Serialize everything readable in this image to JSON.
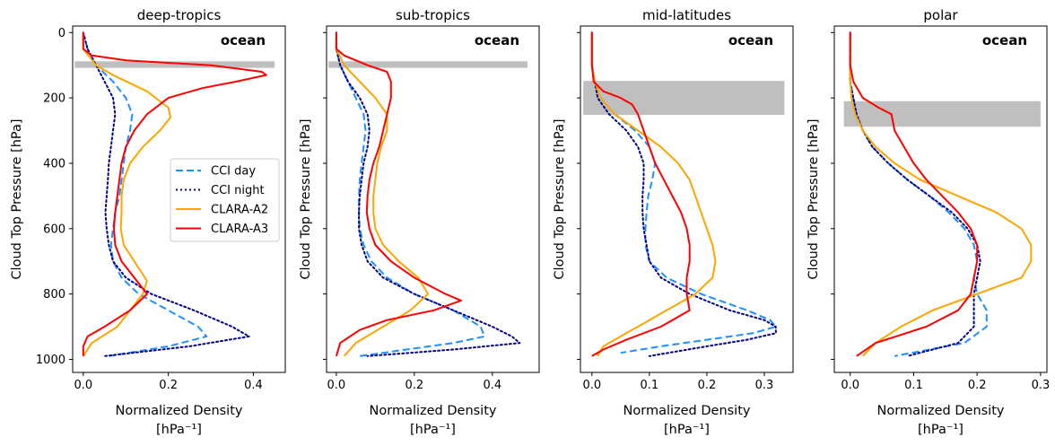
{
  "chart_data": [
    {
      "type": "line",
      "title": "deep-tropics",
      "annotation": "ocean",
      "xlabel": "Normalized Density",
      "xunit": "[hPa⁻¹]",
      "ylabel": "Cloud Top Pressure [hPa]",
      "xlim": [
        -0.025,
        0.475
      ],
      "ylim": [
        1040,
        -20
      ],
      "xticks": [
        0.0,
        0.2,
        0.4
      ],
      "xtick_labels": [
        "0.0",
        "0.2",
        "0.4"
      ],
      "yticks": [
        0,
        200,
        400,
        600,
        800,
        1000
      ],
      "ytick_labels": [
        "0",
        "200",
        "400",
        "600",
        "800",
        "1000"
      ],
      "tropopause_band": {
        "p_top": 88,
        "p_bottom": 108,
        "x_min": -0.02,
        "x_max": 0.45
      },
      "series": [
        {
          "name": "CCI day",
          "pressure": [
            0,
            50,
            100,
            150,
            200,
            250,
            300,
            350,
            400,
            450,
            500,
            550,
            600,
            650,
            700,
            750,
            800,
            850,
            900,
            930,
            960,
            990
          ],
          "density": [
            0.0,
            0.01,
            0.03,
            0.07,
            0.1,
            0.115,
            0.11,
            0.1,
            0.095,
            0.09,
            0.085,
            0.075,
            0.07,
            0.065,
            0.07,
            0.09,
            0.13,
            0.2,
            0.27,
            0.29,
            0.2,
            0.06
          ]
        },
        {
          "name": "CCI night",
          "pressure": [
            0,
            50,
            100,
            150,
            200,
            250,
            300,
            350,
            400,
            450,
            500,
            550,
            600,
            650,
            700,
            750,
            800,
            850,
            900,
            930,
            960,
            990
          ],
          "density": [
            0.0,
            0.01,
            0.03,
            0.05,
            0.07,
            0.075,
            0.07,
            0.065,
            0.06,
            0.058,
            0.055,
            0.052,
            0.055,
            0.06,
            0.07,
            0.1,
            0.16,
            0.26,
            0.35,
            0.39,
            0.25,
            0.05
          ]
        },
        {
          "name": "CLARA-A2",
          "pressure": [
            0,
            50,
            100,
            130,
            180,
            230,
            260,
            300,
            350,
            400,
            450,
            500,
            550,
            600,
            650,
            700,
            760,
            800,
            850,
            900,
            950,
            990
          ],
          "density": [
            0.0,
            0.0,
            0.03,
            0.07,
            0.15,
            0.2,
            0.205,
            0.18,
            0.14,
            0.11,
            0.095,
            0.09,
            0.09,
            0.088,
            0.095,
            0.12,
            0.15,
            0.14,
            0.11,
            0.08,
            0.02,
            0.0
          ]
        },
        {
          "name": "CLARA-A3",
          "pressure": [
            0,
            50,
            70,
            85,
            100,
            120,
            130,
            150,
            170,
            200,
            250,
            300,
            350,
            400,
            450,
            500,
            550,
            600,
            650,
            700,
            750,
            800,
            850,
            900,
            930,
            960,
            990
          ],
          "density": [
            0.0,
            0.0,
            0.02,
            0.1,
            0.3,
            0.42,
            0.43,
            0.36,
            0.28,
            0.2,
            0.15,
            0.12,
            0.1,
            0.09,
            0.085,
            0.08,
            0.075,
            0.072,
            0.075,
            0.09,
            0.12,
            0.15,
            0.11,
            0.05,
            0.01,
            0.0,
            0.0
          ]
        }
      ],
      "legend": [
        "CCI day",
        "CCI night",
        "CLARA-A2",
        "CLARA-A3"
      ]
    },
    {
      "type": "line",
      "title": "sub-tropics",
      "annotation": "ocean",
      "xlabel": "Normalized Density",
      "xunit": "[hPa⁻¹]",
      "ylabel": "Cloud Top Pressure [hPa]",
      "xlim": [
        -0.025,
        0.52
      ],
      "ylim": [
        1040,
        -20
      ],
      "xticks": [
        0.0,
        0.2,
        0.4
      ],
      "xtick_labels": [
        "0.0",
        "0.2",
        "0.4"
      ],
      "yticks": [
        0,
        200,
        400,
        600,
        800,
        1000
      ],
      "ytick_labels": [
        "",
        "",
        "",
        "",
        "",
        ""
      ],
      "tropopause_band": {
        "p_top": 88,
        "p_bottom": 108,
        "x_min": -0.02,
        "x_max": 0.49
      },
      "series": [
        {
          "name": "CCI day",
          "pressure": [
            0,
            50,
            100,
            150,
            200,
            250,
            300,
            350,
            400,
            450,
            500,
            550,
            600,
            650,
            700,
            750,
            800,
            850,
            900,
            930,
            950,
            970,
            990
          ],
          "density": [
            0.0,
            0.0,
            0.01,
            0.03,
            0.05,
            0.07,
            0.075,
            0.07,
            0.065,
            0.06,
            0.058,
            0.058,
            0.06,
            0.07,
            0.09,
            0.13,
            0.2,
            0.3,
            0.37,
            0.38,
            0.3,
            0.18,
            0.06
          ]
        },
        {
          "name": "CCI night",
          "pressure": [
            0,
            50,
            100,
            150,
            200,
            250,
            300,
            350,
            400,
            450,
            500,
            550,
            600,
            650,
            700,
            750,
            800,
            850,
            900,
            930,
            950,
            970,
            990
          ],
          "density": [
            0.0,
            0.0,
            0.01,
            0.03,
            0.06,
            0.08,
            0.085,
            0.08,
            0.07,
            0.065,
            0.06,
            0.058,
            0.058,
            0.065,
            0.08,
            0.12,
            0.2,
            0.3,
            0.4,
            0.45,
            0.47,
            0.3,
            0.08
          ]
        },
        {
          "name": "CLARA-A2",
          "pressure": [
            0,
            50,
            100,
            150,
            200,
            250,
            300,
            350,
            400,
            450,
            500,
            550,
            600,
            650,
            700,
            750,
            800,
            850,
            900,
            950,
            990
          ],
          "density": [
            0.0,
            0.0,
            0.02,
            0.06,
            0.1,
            0.13,
            0.13,
            0.115,
            0.105,
            0.1,
            0.095,
            0.095,
            0.1,
            0.12,
            0.16,
            0.21,
            0.235,
            0.19,
            0.12,
            0.05,
            0.02
          ]
        },
        {
          "name": "CLARA-A3",
          "pressure": [
            0,
            50,
            70,
            100,
            120,
            150,
            200,
            250,
            300,
            350,
            400,
            450,
            500,
            550,
            600,
            650,
            700,
            750,
            800,
            820,
            850,
            880,
            910,
            950,
            990
          ],
          "density": [
            0.0,
            0.0,
            0.02,
            0.08,
            0.13,
            0.14,
            0.14,
            0.13,
            0.12,
            0.11,
            0.095,
            0.085,
            0.08,
            0.078,
            0.085,
            0.1,
            0.14,
            0.2,
            0.28,
            0.32,
            0.25,
            0.13,
            0.06,
            0.01,
            0.0
          ]
        }
      ]
    },
    {
      "type": "line",
      "title": "mid-latitudes",
      "annotation": "ocean",
      "xlabel": "Normalized Density",
      "xunit": "[hPa⁻¹]",
      "ylabel": "Cloud Top Pressure [hPa]",
      "xlim": [
        -0.02,
        0.35
      ],
      "ylim": [
        1040,
        -20
      ],
      "xticks": [
        0.0,
        0.1,
        0.2,
        0.3
      ],
      "xtick_labels": [
        "0.0",
        "0.1",
        "0.2",
        "0.3"
      ],
      "yticks": [
        0,
        200,
        400,
        600,
        800,
        1000
      ],
      "ytick_labels": [
        "",
        "",
        "",
        "",
        "",
        ""
      ],
      "tropopause_band": {
        "p_top": 148,
        "p_bottom": 252,
        "x_min": -0.015,
        "x_max": 0.335
      },
      "series": [
        {
          "name": "CCI day",
          "pressure": [
            0,
            100,
            150,
            200,
            250,
            300,
            350,
            400,
            450,
            500,
            550,
            600,
            650,
            700,
            750,
            800,
            850,
            880,
            900,
            920,
            940,
            960,
            980
          ],
          "density": [
            0.0,
            0.0,
            0.005,
            0.015,
            0.04,
            0.075,
            0.1,
            0.11,
            0.105,
            0.098,
            0.095,
            0.093,
            0.093,
            0.1,
            0.13,
            0.19,
            0.27,
            0.31,
            0.32,
            0.28,
            0.2,
            0.12,
            0.05
          ]
        },
        {
          "name": "CCI night",
          "pressure": [
            0,
            100,
            150,
            200,
            250,
            300,
            350,
            400,
            450,
            500,
            550,
            600,
            650,
            700,
            750,
            800,
            850,
            880,
            900,
            920,
            940,
            960,
            990
          ],
          "density": [
            0.0,
            0.0,
            0.005,
            0.01,
            0.03,
            0.06,
            0.08,
            0.09,
            0.09,
            0.088,
            0.088,
            0.09,
            0.095,
            0.1,
            0.12,
            0.17,
            0.24,
            0.3,
            0.32,
            0.32,
            0.27,
            0.2,
            0.1
          ]
        },
        {
          "name": "CLARA-A2",
          "pressure": [
            0,
            100,
            150,
            200,
            250,
            300,
            350,
            400,
            450,
            500,
            550,
            600,
            650,
            700,
            750,
            800,
            850,
            900,
            930,
            960,
            990
          ],
          "density": [
            0.0,
            0.0,
            0.005,
            0.015,
            0.04,
            0.08,
            0.12,
            0.15,
            0.17,
            0.18,
            0.19,
            0.2,
            0.21,
            0.215,
            0.21,
            0.18,
            0.13,
            0.08,
            0.05,
            0.02,
            0.01
          ]
        },
        {
          "name": "CLARA-A3",
          "pressure": [
            0,
            100,
            150,
            180,
            200,
            220,
            250,
            300,
            350,
            400,
            450,
            500,
            550,
            600,
            650,
            700,
            750,
            800,
            850,
            900,
            940,
            970,
            990
          ],
          "density": [
            0.0,
            0.0,
            0.003,
            0.02,
            0.05,
            0.07,
            0.08,
            0.09,
            0.1,
            0.11,
            0.125,
            0.14,
            0.155,
            0.165,
            0.17,
            0.17,
            0.165,
            0.165,
            0.17,
            0.12,
            0.06,
            0.02,
            0.0
          ]
        }
      ]
    },
    {
      "type": "line",
      "title": "polar",
      "annotation": "ocean",
      "xlabel": "Normalized Density",
      "xunit": "[hPa⁻¹]",
      "ylabel": "Cloud Top Pressure [hPa]",
      "xlim": [
        -0.025,
        0.31
      ],
      "ylim": [
        1040,
        -20
      ],
      "xticks": [
        0.0,
        0.1,
        0.2,
        0.3
      ],
      "xtick_labels": [
        "0.0",
        "0.1",
        "0.2",
        "0.3"
      ],
      "yticks": [
        0,
        200,
        400,
        600,
        800,
        1000
      ],
      "ytick_labels": [
        "",
        "",
        "",
        "",
        "",
        ""
      ],
      "tropopause_band": {
        "p_top": 210,
        "p_bottom": 288,
        "x_min": -0.01,
        "x_max": 0.3
      },
      "series": [
        {
          "name": "CCI day",
          "pressure": [
            0,
            100,
            150,
            200,
            250,
            300,
            350,
            400,
            450,
            500,
            550,
            600,
            650,
            700,
            750,
            800,
            850,
            900,
            950,
            990
          ],
          "density": [
            0.0,
            0.0,
            0.0,
            0.005,
            0.01,
            0.02,
            0.035,
            0.06,
            0.09,
            0.125,
            0.155,
            0.18,
            0.195,
            0.2,
            0.195,
            0.2,
            0.215,
            0.215,
            0.18,
            0.07
          ]
        },
        {
          "name": "CCI night",
          "pressure": [
            0,
            100,
            150,
            200,
            250,
            300,
            350,
            400,
            450,
            500,
            550,
            600,
            650,
            700,
            750,
            800,
            850,
            900,
            950,
            990
          ],
          "density": [
            0.0,
            0.0,
            0.0,
            0.005,
            0.01,
            0.02,
            0.035,
            0.06,
            0.09,
            0.125,
            0.16,
            0.185,
            0.2,
            0.205,
            0.2,
            0.195,
            0.195,
            0.195,
            0.17,
            0.09
          ]
        },
        {
          "name": "CLARA-A2",
          "pressure": [
            0,
            100,
            150,
            200,
            250,
            300,
            350,
            400,
            450,
            500,
            550,
            600,
            650,
            700,
            750,
            800,
            850,
            900,
            950,
            990
          ],
          "density": [
            0.0,
            0.0,
            0.0,
            0.002,
            0.008,
            0.02,
            0.04,
            0.07,
            0.11,
            0.17,
            0.23,
            0.27,
            0.285,
            0.285,
            0.27,
            0.2,
            0.13,
            0.08,
            0.04,
            0.02
          ]
        },
        {
          "name": "CLARA-A3",
          "pressure": [
            0,
            100,
            150,
            200,
            230,
            250,
            300,
            350,
            400,
            450,
            500,
            550,
            600,
            650,
            700,
            750,
            800,
            850,
            900,
            950,
            990
          ],
          "density": [
            0.0,
            0.0,
            0.005,
            0.02,
            0.045,
            0.065,
            0.07,
            0.085,
            0.1,
            0.12,
            0.145,
            0.17,
            0.19,
            0.2,
            0.2,
            0.195,
            0.19,
            0.17,
            0.12,
            0.04,
            0.01
          ]
        }
      ]
    }
  ],
  "colors": {
    "CCI day": "#1e90ff",
    "CCI night": "#00008b",
    "CLARA-A2": "#ffa500",
    "CLARA-A3": "#ff0000",
    "tropopause_band": "#bfbfbf"
  }
}
